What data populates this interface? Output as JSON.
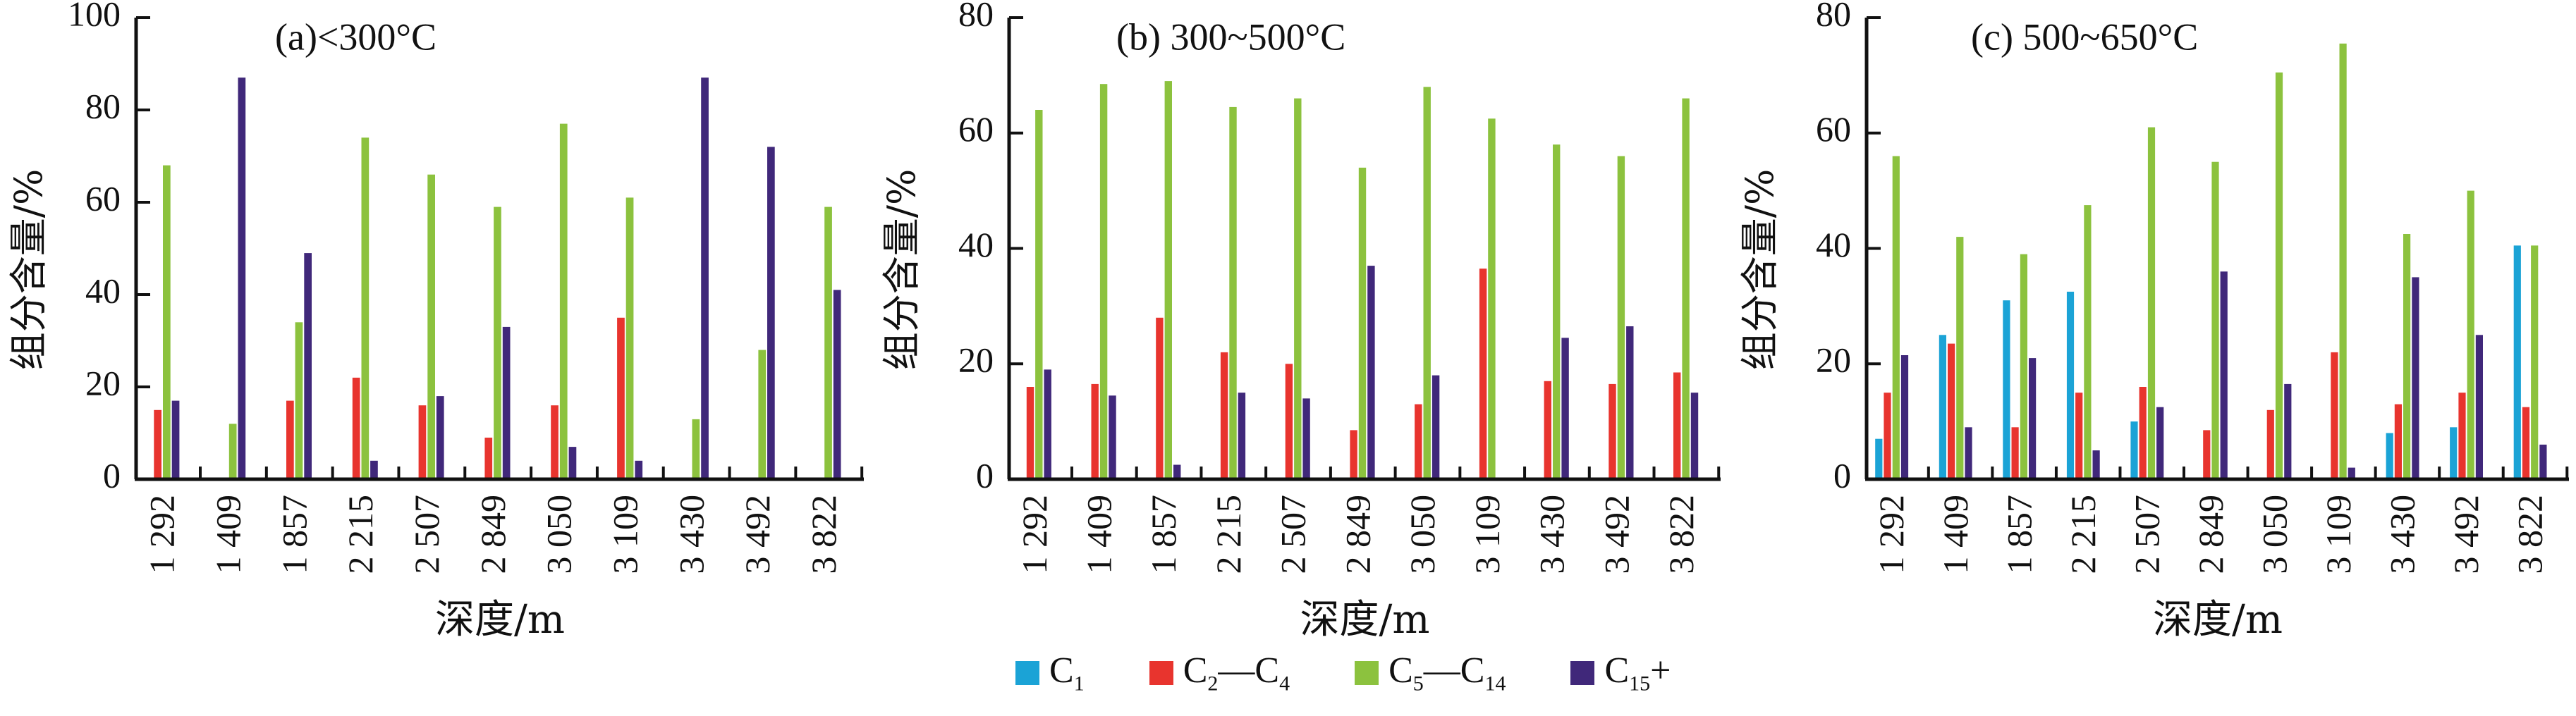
{
  "chart_data": [
    {
      "type": "bar",
      "title": "(a)<300°C",
      "xlabel": "深度/m",
      "ylabel": "组分含量/%",
      "ylim": [
        0,
        100
      ],
      "yticks": [
        0,
        20,
        40,
        60,
        80,
        100
      ],
      "categories": [
        "1 292",
        "1 409",
        "1 857",
        "2 215",
        "2 507",
        "2 849",
        "3 050",
        "3 109",
        "3 430",
        "3 492",
        "3 822"
      ],
      "series": [
        {
          "name": "C1",
          "values": [
            0,
            0,
            0,
            0,
            0,
            0,
            0,
            0,
            0,
            0,
            0
          ]
        },
        {
          "name": "C2—C4",
          "values": [
            15,
            0,
            17,
            22,
            16,
            9,
            16,
            35,
            0,
            0,
            0
          ]
        },
        {
          "name": "C5—C14",
          "values": [
            68,
            12,
            34,
            74,
            66,
            59,
            77,
            61,
            13,
            28,
            59
          ]
        },
        {
          "name": "C15+",
          "values": [
            17,
            87,
            49,
            4,
            18,
            33,
            7,
            4,
            87,
            72,
            41
          ]
        }
      ]
    },
    {
      "type": "bar",
      "title": "(b) 300~500°C",
      "xlabel": "深度/m",
      "ylabel": "组分含量/%",
      "ylim": [
        0,
        80
      ],
      "yticks": [
        0,
        20,
        40,
        60,
        80
      ],
      "categories": [
        "1 292",
        "1 409",
        "1 857",
        "2 215",
        "2 507",
        "2 849",
        "3 050",
        "3 109",
        "3 430",
        "3 492",
        "3 822"
      ],
      "series": [
        {
          "name": "C1",
          "values": [
            0,
            0,
            0,
            0,
            0,
            0,
            0,
            0,
            0,
            0,
            0
          ]
        },
        {
          "name": "C2—C4",
          "values": [
            16,
            16.5,
            28,
            22,
            20,
            8.5,
            13,
            36.5,
            17,
            16.5,
            18.5
          ]
        },
        {
          "name": "C5—C14",
          "values": [
            64,
            68.5,
            69,
            64.5,
            66,
            54,
            68,
            62.5,
            58,
            56,
            66
          ]
        },
        {
          "name": "C15+",
          "values": [
            19,
            14.5,
            2.5,
            15,
            14,
            37,
            18,
            0,
            24.5,
            26.5,
            15
          ]
        }
      ]
    },
    {
      "type": "bar",
      "title": "(c) 500~650°C",
      "xlabel": "深度/m",
      "ylabel": "组分含量/%",
      "ylim": [
        0,
        80
      ],
      "yticks": [
        0,
        20,
        40,
        60,
        80
      ],
      "categories": [
        "1 292",
        "1 409",
        "1 857",
        "2 215",
        "2 507",
        "2 849",
        "3 050",
        "3 109",
        "3 430",
        "3 492",
        "3 822"
      ],
      "series": [
        {
          "name": "C1",
          "values": [
            7,
            25,
            31,
            32.5,
            10,
            0,
            0,
            0,
            8,
            9,
            40.5
          ]
        },
        {
          "name": "C2—C4",
          "values": [
            15,
            23.5,
            9,
            15,
            16,
            8.5,
            12,
            22,
            13,
            15,
            12.5
          ]
        },
        {
          "name": "C5—C14",
          "values": [
            56,
            42,
            39,
            47.5,
            61,
            55,
            70.5,
            75.5,
            42.5,
            50,
            40.5
          ]
        },
        {
          "name": "C15+",
          "values": [
            21.5,
            9,
            21,
            5,
            12.5,
            36,
            16.5,
            2,
            35,
            25,
            6
          ]
        }
      ]
    }
  ],
  "legend": {
    "items": [
      {
        "label": "C",
        "sub": "1",
        "label2": "",
        "sub2": "",
        "suffix": "",
        "color": "#1ba3d6"
      },
      {
        "label": "C",
        "sub": "2",
        "label2": "—C",
        "sub2": "4",
        "suffix": "",
        "color": "#e8342e"
      },
      {
        "label": "C",
        "sub": "5",
        "label2": "—C",
        "sub2": "14",
        "suffix": "",
        "color": "#8cc23e"
      },
      {
        "label": "C",
        "sub": "15",
        "label2": "",
        "sub2": "",
        "suffix": "+",
        "color": "#40287a"
      }
    ]
  },
  "colors": {
    "c1": "#1ba3d6",
    "c2_c4": "#e8342e",
    "c5_c14": "#8cc23e",
    "c15_plus": "#40287a",
    "axis": "#111111"
  }
}
